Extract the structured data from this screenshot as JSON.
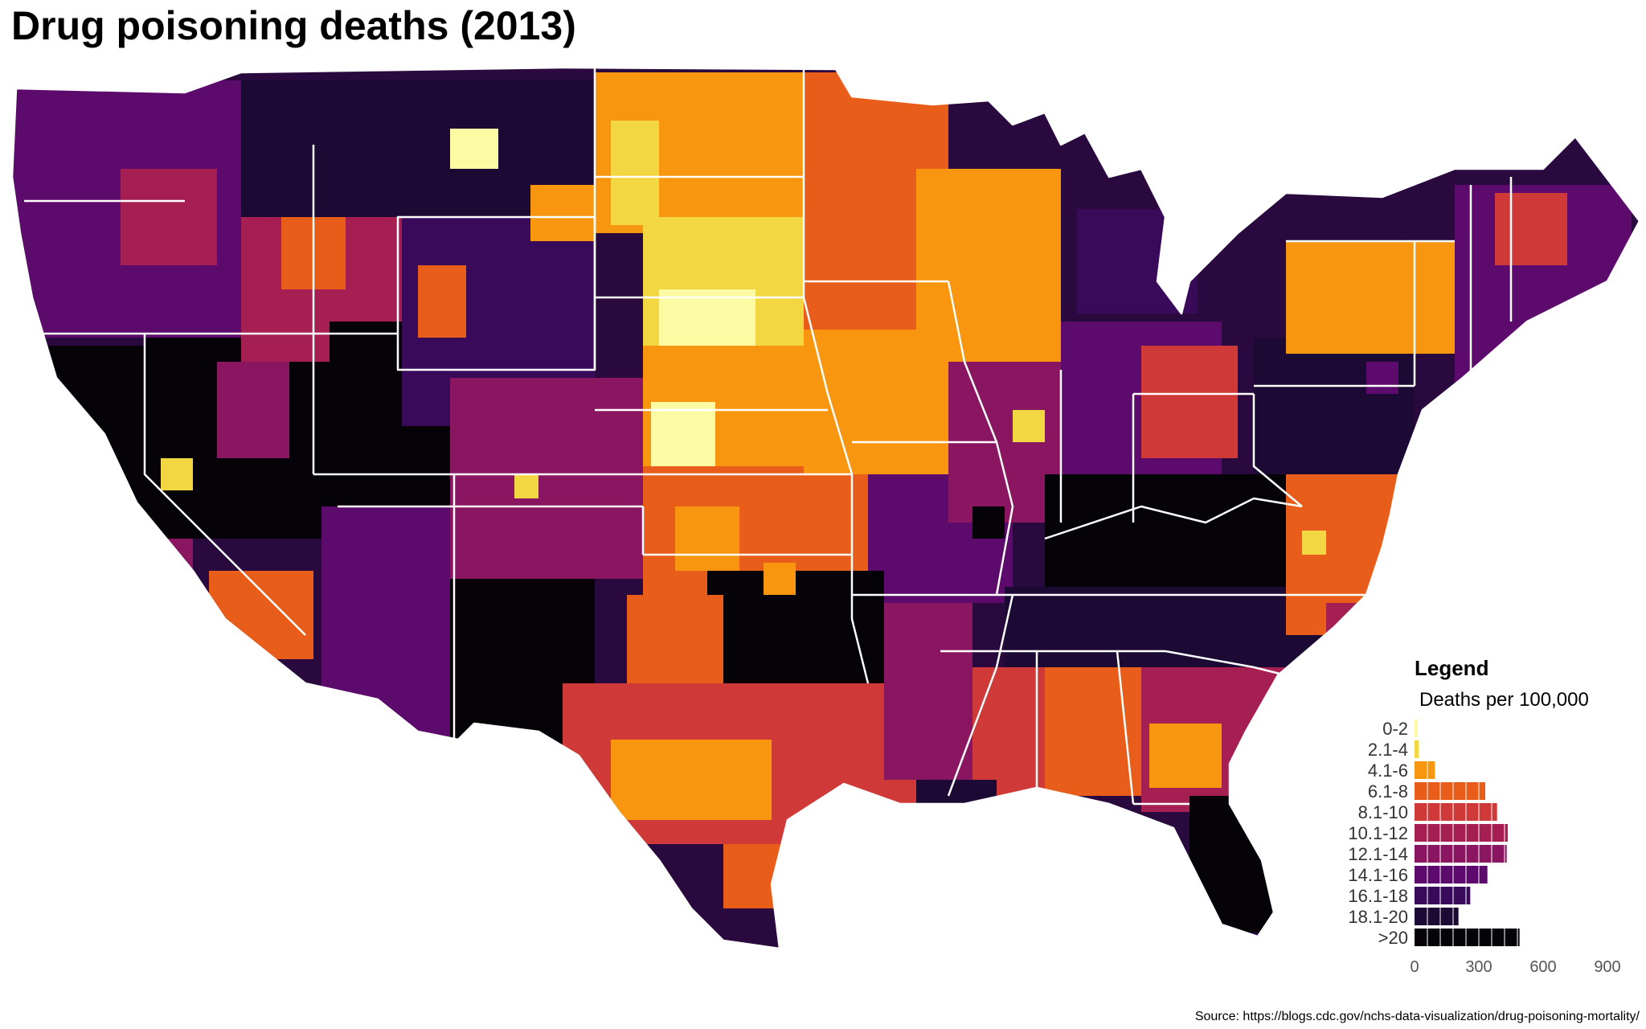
{
  "title": "Drug poisoning deaths (2013)",
  "source": "Source: https://blogs.cdc.gov/nchs-data-visualization/drug-poisoning-mortality/",
  "legend": {
    "title": "Legend",
    "subtitle": "Deaths per 100,000",
    "axis_ticks": [
      0,
      300,
      600,
      900
    ],
    "axis_max": 900,
    "classes": [
      {
        "label": "0-2",
        "color": "#fcfba4",
        "count": 12
      },
      {
        "label": "2.1-4",
        "color": "#f2d742",
        "count": 20
      },
      {
        "label": "4.1-6",
        "color": "#f8960f",
        "count": 95
      },
      {
        "label": "6.1-8",
        "color": "#e85d19",
        "count": 330
      },
      {
        "label": "8.1-10",
        "color": "#cf3a38",
        "count": 385
      },
      {
        "label": "10.1-12",
        "color": "#a51f52",
        "count": 435
      },
      {
        "label": "12.1-14",
        "color": "#8a1662",
        "count": 430
      },
      {
        "label": "14.1-16",
        "color": "#5c0a6c",
        "count": 340
      },
      {
        "label": "16.1-18",
        "color": "#3a0a5a",
        "count": 260
      },
      {
        "label": "18.1-20",
        "color": "#1c0a34",
        "count": 205
      },
      {
        "label": ">20",
        "color": "#050308",
        "count": 490
      }
    ]
  }
}
